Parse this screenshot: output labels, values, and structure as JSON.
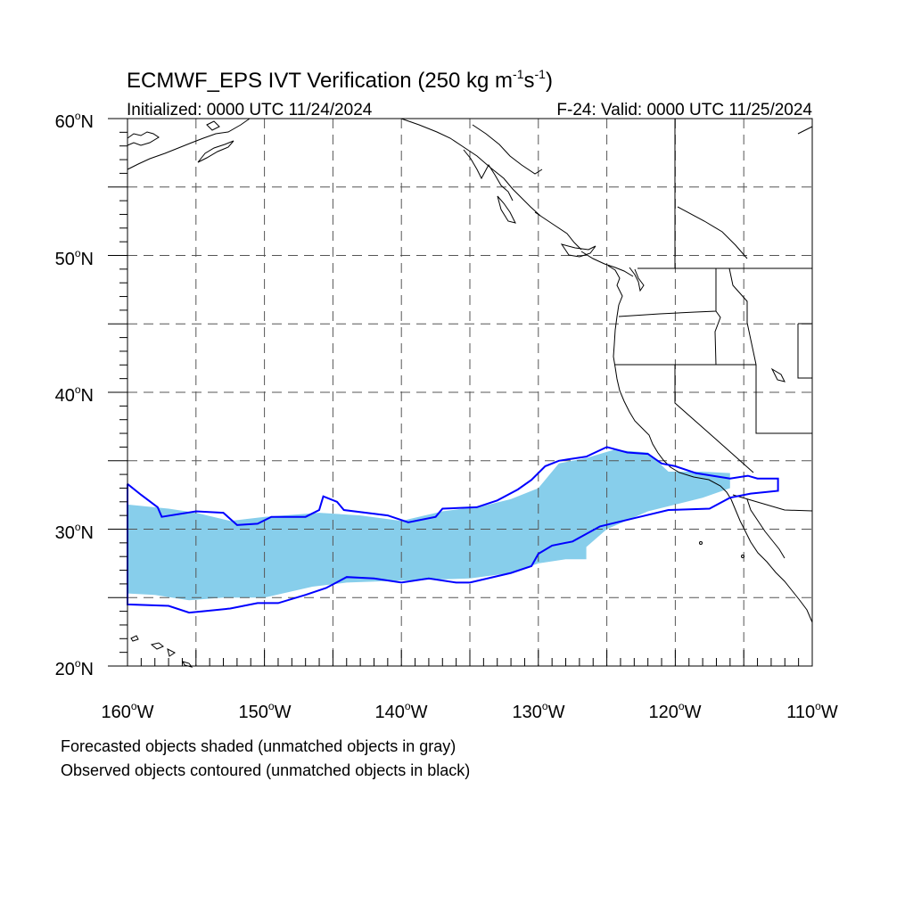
{
  "header": {
    "title_main": "ECMWF_EPS IVT Verification (250 kg m",
    "title_exp1": "-1",
    "title_mid": "s",
    "title_exp2": "-1",
    "title_end": ")",
    "initialized": "Initialized: 0000 UTC 11/24/2024",
    "valid": "F-24: Valid: 0000 UTC 11/25/2024"
  },
  "axes": {
    "lat_labels": [
      "60",
      "50",
      "40",
      "30",
      "20"
    ],
    "lat_suffix": "N",
    "lon_labels": [
      "160",
      "150",
      "140",
      "130",
      "120",
      "110"
    ],
    "lon_suffix": "W",
    "degree_symbol": "o"
  },
  "footer": {
    "line1": "Forecasted objects shaded (unmatched objects in gray)",
    "line2": "Observed objects contoured (unmatched objects in black)"
  },
  "colors": {
    "forecast_fill": "#87ceeb",
    "observed_contour": "#0000ff",
    "grid": "#555555",
    "coast": "#000000"
  },
  "map": {
    "lon_range": [
      -160,
      -110
    ],
    "lat_range": [
      20,
      60
    ],
    "forecast_object": [
      [
        -160,
        31.8
      ],
      [
        -157,
        31.5
      ],
      [
        -155,
        31.2
      ],
      [
        -152.5,
        30.6
      ],
      [
        -150,
        30.9
      ],
      [
        -146,
        31.2
      ],
      [
        -143,
        31.0
      ],
      [
        -140,
        30.6
      ],
      [
        -137,
        31.3
      ],
      [
        -134,
        31.7
      ],
      [
        -132,
        32.2
      ],
      [
        -130,
        33.0
      ],
      [
        -128.5,
        34.8
      ],
      [
        -126.5,
        35.2
      ],
      [
        -124.5,
        35.8
      ],
      [
        -122,
        35.6
      ],
      [
        -120.5,
        34.2
      ],
      [
        -118,
        34.2
      ],
      [
        -116,
        34.1
      ],
      [
        -116,
        33.0
      ],
      [
        -118,
        32.3
      ],
      [
        -122,
        31.3
      ],
      [
        -125,
        30.0
      ],
      [
        -126.5,
        28.7
      ],
      [
        -126.5,
        27.8
      ],
      [
        -128,
        27.8
      ],
      [
        -130,
        27.5
      ],
      [
        -132,
        26.8
      ],
      [
        -135,
        26.4
      ],
      [
        -138,
        26.3
      ],
      [
        -141,
        26.2
      ],
      [
        -144,
        26.1
      ],
      [
        -146.5,
        25.8
      ],
      [
        -150,
        25.0
      ],
      [
        -153,
        25.0
      ],
      [
        -155.5,
        24.8
      ],
      [
        -158,
        25.2
      ],
      [
        -160,
        25.3
      ]
    ],
    "observed_object": [
      [
        -160,
        33.3
      ],
      [
        -159,
        32.5
      ],
      [
        -157.8,
        31.6
      ],
      [
        -157.5,
        30.9
      ],
      [
        -155,
        31.3
      ],
      [
        -153,
        31.2
      ],
      [
        -152,
        30.3
      ],
      [
        -150.5,
        30.4
      ],
      [
        -149.5,
        30.9
      ],
      [
        -147,
        30.9
      ],
      [
        -146,
        31.4
      ],
      [
        -145.7,
        32.4
      ],
      [
        -144.7,
        32.0
      ],
      [
        -144.2,
        31.4
      ],
      [
        -141,
        31.0
      ],
      [
        -139.5,
        30.5
      ],
      [
        -137.5,
        30.9
      ],
      [
        -137,
        31.5
      ],
      [
        -134.5,
        31.6
      ],
      [
        -133,
        32.1
      ],
      [
        -131.5,
        32.9
      ],
      [
        -130.5,
        33.6
      ],
      [
        -129.5,
        34.6
      ],
      [
        -128.5,
        35.0
      ],
      [
        -126.5,
        35.3
      ],
      [
        -125,
        36.0
      ],
      [
        -123.5,
        35.6
      ],
      [
        -122,
        35.5
      ],
      [
        -121,
        34.8
      ],
      [
        -120,
        34.6
      ],
      [
        -118.5,
        34.1
      ],
      [
        -116,
        33.7
      ],
      [
        -114.7,
        33.9
      ],
      [
        -114,
        33.7
      ],
      [
        -112.5,
        33.7
      ],
      [
        -112.5,
        32.8
      ],
      [
        -114.5,
        32.6
      ],
      [
        -116,
        32.3
      ],
      [
        -117.5,
        31.5
      ],
      [
        -120.5,
        31.4
      ],
      [
        -123,
        30.8
      ],
      [
        -125.5,
        30.2
      ],
      [
        -127.5,
        29.1
      ],
      [
        -129,
        28.8
      ],
      [
        -130,
        28.2
      ],
      [
        -130.5,
        27.3
      ],
      [
        -132,
        26.8
      ],
      [
        -135,
        26.1
      ],
      [
        -136,
        26.1
      ],
      [
        -138,
        26.4
      ],
      [
        -140,
        26.1
      ],
      [
        -142,
        26.4
      ],
      [
        -144,
        26.5
      ],
      [
        -145.5,
        25.7
      ],
      [
        -147,
        25.2
      ],
      [
        -149,
        24.6
      ],
      [
        -150.5,
        24.6
      ],
      [
        -152.5,
        24.2
      ],
      [
        -154.5,
        24.0
      ],
      [
        -155.5,
        23.9
      ],
      [
        -157,
        24.4
      ],
      [
        -160,
        24.5
      ]
    ]
  }
}
